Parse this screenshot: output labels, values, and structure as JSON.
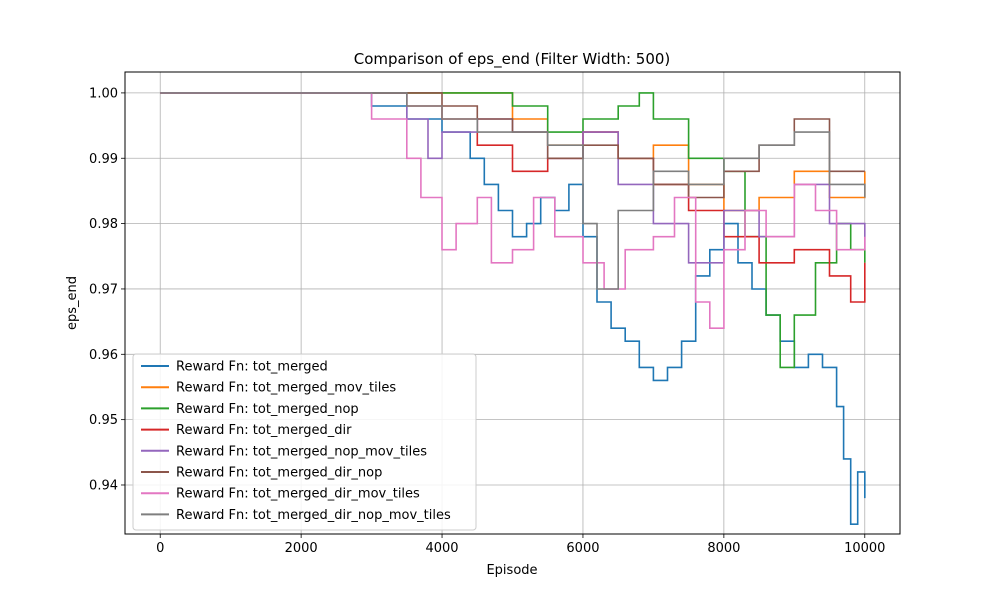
{
  "chart_data": {
    "type": "line",
    "title": "Comparison of eps_end (Filter Width: 500)",
    "xlabel": "Episode",
    "ylabel": "eps_end",
    "xlim": [
      -500,
      10500
    ],
    "ylim": [
      0.9325,
      1.0032
    ],
    "xticks": [
      0,
      2000,
      4000,
      6000,
      8000,
      10000
    ],
    "yticks": [
      0.94,
      0.95,
      0.96,
      0.97,
      0.98,
      0.99,
      1.0
    ],
    "xtick_labels": [
      "0",
      "2000",
      "4000",
      "6000",
      "8000",
      "10000"
    ],
    "ytick_labels": [
      "0.94",
      "0.95",
      "0.96",
      "0.97",
      "0.98",
      "0.99",
      "1.00"
    ],
    "grid": true,
    "legend_position": "lower-left",
    "series": [
      {
        "name": "Reward Fn: tot_merged",
        "color": "#1f77b4",
        "x": [
          0,
          2500,
          3000,
          3500,
          4000,
          4400,
          4600,
          4800,
          5000,
          5200,
          5400,
          5600,
          5800,
          6000,
          6200,
          6400,
          6600,
          6800,
          7000,
          7200,
          7400,
          7600,
          7800,
          8000,
          8200,
          8400,
          8600,
          8800,
          9000,
          9200,
          9400,
          9600,
          9700,
          9800,
          9900,
          10000
        ],
        "y": [
          1.0,
          1.0,
          0.998,
          0.996,
          0.994,
          0.99,
          0.986,
          0.982,
          0.978,
          0.98,
          0.984,
          0.982,
          0.986,
          0.978,
          0.968,
          0.964,
          0.962,
          0.958,
          0.956,
          0.958,
          0.962,
          0.972,
          0.976,
          0.98,
          0.974,
          0.97,
          0.966,
          0.962,
          0.958,
          0.96,
          0.958,
          0.952,
          0.944,
          0.934,
          0.942,
          0.938
        ]
      },
      {
        "name": "Reward Fn: tot_merged_mov_tiles",
        "color": "#ff7f0e",
        "x": [
          0,
          3000,
          3500,
          4000,
          4500,
          5000,
          5500,
          6000,
          6500,
          7000,
          7500,
          8000,
          8500,
          9000,
          9500,
          10000
        ],
        "y": [
          1.0,
          1.0,
          1.0,
          1.0,
          1.0,
          0.996,
          0.992,
          0.994,
          0.99,
          0.992,
          0.986,
          0.982,
          0.984,
          0.988,
          0.984,
          0.988
        ]
      },
      {
        "name": "Reward Fn: tot_merged_nop",
        "color": "#2ca02c",
        "x": [
          0,
          3500,
          4000,
          4500,
          5000,
          5500,
          6000,
          6500,
          6800,
          7000,
          7500,
          8000,
          8300,
          8600,
          8800,
          9000,
          9300,
          9600,
          9800,
          10000
        ],
        "y": [
          1.0,
          1.0,
          1.0,
          1.0,
          0.998,
          0.994,
          0.996,
          0.998,
          1.0,
          0.996,
          0.99,
          0.988,
          0.978,
          0.966,
          0.958,
          0.966,
          0.974,
          0.98,
          0.976,
          0.974
        ]
      },
      {
        "name": "Reward Fn: tot_merged_dir",
        "color": "#d62728",
        "x": [
          0,
          3000,
          3500,
          4000,
          4500,
          5000,
          5500,
          6000,
          6500,
          7000,
          7500,
          8000,
          8500,
          9000,
          9500,
          9800,
          10000
        ],
        "y": [
          1.0,
          1.0,
          0.998,
          0.996,
          0.992,
          0.988,
          0.99,
          0.994,
          0.99,
          0.986,
          0.982,
          0.978,
          0.974,
          0.976,
          0.972,
          0.968,
          0.974
        ]
      },
      {
        "name": "Reward Fn: tot_merged_nop_mov_tiles",
        "color": "#9467bd",
        "x": [
          0,
          3000,
          3500,
          3800,
          4000,
          4500,
          5000,
          5500,
          6000,
          6500,
          7000,
          7500,
          8000,
          8500,
          9000,
          9500,
          10000
        ],
        "y": [
          1.0,
          1.0,
          0.996,
          0.99,
          0.994,
          0.996,
          0.994,
          0.99,
          0.994,
          0.986,
          0.98,
          0.974,
          0.982,
          0.978,
          0.986,
          0.98,
          0.976
        ]
      },
      {
        "name": "Reward Fn: tot_merged_dir_nop",
        "color": "#8c564b",
        "x": [
          0,
          3000,
          3500,
          4000,
          4500,
          5000,
          5500,
          6000,
          6500,
          7000,
          7500,
          8000,
          8500,
          9000,
          9500,
          10000
        ],
        "y": [
          1.0,
          1.0,
          1.0,
          0.998,
          0.996,
          0.994,
          0.99,
          0.992,
          0.99,
          0.986,
          0.984,
          0.988,
          0.992,
          0.996,
          0.988,
          0.988
        ]
      },
      {
        "name": "Reward Fn: tot_merged_dir_mov_tiles",
        "color": "#e377c2",
        "x": [
          0,
          2600,
          3000,
          3500,
          3700,
          4000,
          4200,
          4500,
          4700,
          5000,
          5300,
          5600,
          6000,
          6300,
          6600,
          7000,
          7300,
          7600,
          7800,
          8000,
          8300,
          8600,
          9000,
          9300,
          9600,
          10000
        ],
        "y": [
          1.0,
          1.0,
          0.996,
          0.99,
          0.984,
          0.976,
          0.98,
          0.984,
          0.974,
          0.976,
          0.984,
          0.978,
          0.974,
          0.97,
          0.976,
          0.978,
          0.984,
          0.968,
          0.964,
          0.976,
          0.982,
          0.978,
          0.986,
          0.982,
          0.976,
          0.978
        ]
      },
      {
        "name": "Reward Fn: tot_merged_dir_nop_mov_tiles",
        "color": "#7f7f7f",
        "x": [
          0,
          3000,
          3500,
          4000,
          4500,
          5000,
          5500,
          6000,
          6200,
          6500,
          7000,
          7500,
          8000,
          8500,
          9000,
          9500,
          10000
        ],
        "y": [
          1.0,
          1.0,
          0.998,
          0.996,
          0.994,
          0.994,
          0.992,
          0.98,
          0.97,
          0.982,
          0.988,
          0.986,
          0.99,
          0.992,
          0.994,
          0.986,
          0.984
        ]
      }
    ]
  }
}
